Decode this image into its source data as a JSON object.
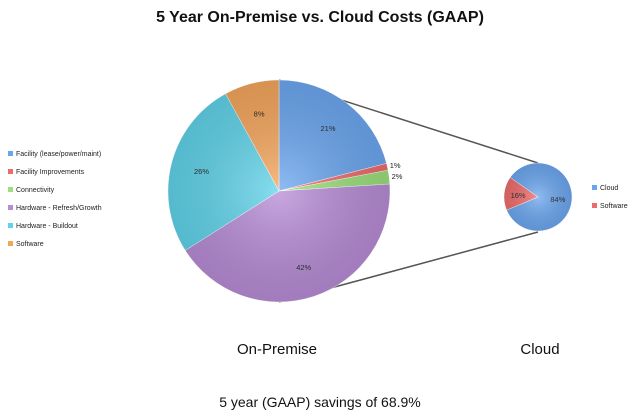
{
  "chart_data": [
    {
      "type": "pie",
      "title": "5 Year On-Premise vs. Cloud Costs (GAAP)",
      "subtitle": "On-Premise",
      "legend_position": "left",
      "slices": [
        {
          "label": "Facility (lease/power/maint)",
          "value": 21,
          "display": "21%",
          "color": "#6aa6f0"
        },
        {
          "label": "Facility Improvements",
          "value": 1,
          "display": "1%",
          "color": "#f06a6a"
        },
        {
          "label": "Connectivity",
          "value": 2,
          "display": "2%",
          "color": "#9be07a"
        },
        {
          "label": "Hardware - Refresh/Growth",
          "value": 42,
          "display": "42%",
          "color": "#b78bd6"
        },
        {
          "label": "Hardware - Buildout",
          "value": 26,
          "display": "26%",
          "color": "#5fd3ea"
        },
        {
          "label": "Software",
          "value": 8,
          "display": "8%",
          "color": "#f5a55a"
        }
      ]
    },
    {
      "type": "pie",
      "subtitle": "Cloud",
      "legend_position": "right",
      "slices": [
        {
          "label": "Cloud",
          "value": 84,
          "display": "84%",
          "color": "#6aa6f0"
        },
        {
          "label": "Software",
          "value": 16,
          "display": "16%",
          "color": "#f06a6a"
        }
      ]
    }
  ],
  "footer": "5 year (GAAP) savings of 68.9%"
}
